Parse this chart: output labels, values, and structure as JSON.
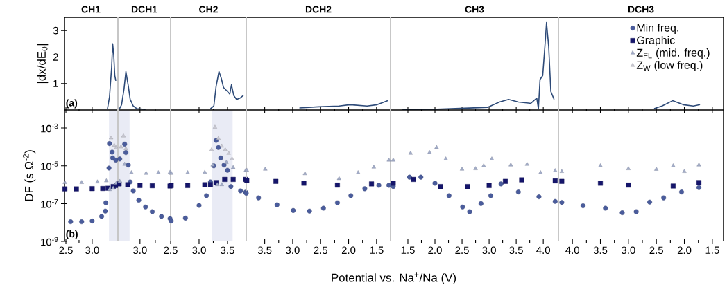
{
  "chart_data": [
    {
      "type": "line",
      "title": "CH1",
      "ylabel": "|dx/dE$_{0}$|",
      "annotations": [
        "(a)"
      ],
      "xlim": [
        2.46,
        3.49
      ],
      "xticks": [
        2.5,
        3
      ],
      "ylim": [
        0,
        3.5
      ],
      "yticks": [
        1,
        2,
        3
      ],
      "tick_labels": "y",
      "series": [
        {
          "color": "#2d4a78",
          "x": [
            3.29,
            3.33,
            3.37,
            3.39,
            3.41,
            3.43,
            3.45
          ],
          "values": [
            0.03,
            0.5,
            1.6,
            2.5,
            2.1,
            1.3,
            1.1
          ]
        }
      ]
    },
    {
      "type": "line",
      "title": "DCH1",
      "xlim": [
        3.36,
        2.5
      ],
      "xticks": [
        3,
        2.5
      ],
      "ylim": [
        0,
        3.5
      ],
      "tick_labels": false,
      "series": [
        {
          "color": "#2d4a78",
          "x": [
            3.34,
            3.3,
            3.26,
            3.23,
            3.19,
            3.16,
            3.11,
            3.05,
            2.91
          ],
          "values": [
            0.02,
            0.2,
            0.8,
            1.45,
            0.9,
            0.4,
            0.15,
            0.05,
            0.02
          ]
        }
      ]
    },
    {
      "type": "line",
      "title": "CH2",
      "xlim": [
        2.5,
        3.83
      ],
      "xticks": [
        3,
        3.5
      ],
      "ylim": [
        0,
        3.5
      ],
      "tick_labels": false,
      "series": [
        {
          "color": "#2d4a78",
          "x": [
            3.2,
            3.26,
            3.3,
            3.35,
            3.39,
            3.43,
            3.5,
            3.54,
            3.57,
            3.61,
            3.66,
            3.72,
            3.78
          ],
          "values": [
            0.05,
            0.15,
            0.9,
            1.45,
            1.2,
            0.85,
            0.7,
            0.6,
            0.95,
            0.55,
            0.4,
            0.45,
            0.55
          ]
        }
      ]
    },
    {
      "type": "line",
      "title": "DCH2",
      "xlim": [
        3.83,
        1.25
      ],
      "xticks": [
        3.5,
        3,
        2.5,
        2,
        1.5
      ],
      "ylim": [
        0,
        3.5
      ],
      "tick_labels": false,
      "series": [
        {
          "color": "#2d4a78",
          "x": [
            2.88,
            2.54,
            2.17,
            1.98,
            1.67,
            1.49,
            1.39,
            1.3
          ],
          "values": [
            0.08,
            0.12,
            0.15,
            0.2,
            0.15,
            0.2,
            0.28,
            0.35
          ]
        }
      ]
    },
    {
      "type": "line",
      "title": "CH3",
      "xlim": [
        1.18,
        4.28
      ],
      "xticks": [
        1.5,
        2,
        2.5,
        3,
        3.5,
        4
      ],
      "ylim": [
        0,
        3.5
      ],
      "tick_labels": false,
      "series": [
        {
          "color": "#2d4a78",
          "x": [
            1.4,
            2.04,
            2.97,
            3.19,
            3.36,
            3.54,
            3.77,
            3.88,
            3.91,
            3.94,
            3.99,
            4.03,
            4.06,
            4.1,
            4.14,
            4.2
          ],
          "values": [
            0.02,
            0.03,
            0.1,
            0.3,
            0.4,
            0.3,
            0.25,
            0.45,
            0.05,
            1.15,
            1.3,
            2.4,
            3.3,
            2.4,
            0.7,
            0.4
          ]
        }
      ]
    },
    {
      "type": "line",
      "title": "DCH3",
      "xlim": [
        4.25,
        1.3
      ],
      "xticks": [
        4,
        3.5,
        3,
        2.5,
        2,
        1.5
      ],
      "ylim": [
        0,
        3.5
      ],
      "tick_labels": false,
      "series": [
        {
          "color": "#2d4a78",
          "x": [
            2.54,
            2.4,
            2.21,
            2.02,
            1.84,
            1.72
          ],
          "values": [
            0.05,
            0.15,
            0.35,
            0.2,
            0.15,
            0.2
          ]
        }
      ]
    },
    {
      "type": "scatter",
      "log": "y",
      "ylabel": "DF (s Ω$^{-2}$)",
      "annotations": [
        "(b)"
      ],
      "xlim": [
        2.46,
        3.49
      ],
      "xticks": [
        2.5,
        {
          "value": 3,
          "label": "3.0"
        }
      ],
      "ylim": [
        1e-09,
        0.009
      ],
      "yticks": [
        {
          "value": 1e-09,
          "label": "10$^{-9}$"
        },
        {
          "value": 1e-07,
          "label": "10$^{-7}$"
        },
        {
          "value": 1e-05,
          "label": "10$^{-5}$"
        },
        {
          "value": 0.001,
          "label": "10$^{-3}$"
        }
      ],
      "bands": [
        {
          "axis": "x",
          "from": 3.32,
          "to": 3.49,
          "color": "#e9ebf5"
        }
      ],
      "series": [
        {
          "color": "#4a5c9c",
          "marker": "circle",
          "x": [
            2.59,
            2.8,
            3.0,
            3.18,
            3.25,
            3.26,
            3.32,
            3.33,
            3.38,
            3.39,
            3.45
          ],
          "values": [
            1.1e-08,
            1.1e-08,
            1.2e-08,
            2.1e-08,
            4e-08,
            1.1e-07,
            7.6e-06,
            0.00015,
            5.3e-05,
            2.6e-05,
            2e-05
          ]
        },
        {
          "color": "#15156b",
          "marker": "square",
          "x": [
            2.48,
            2.7,
            3.0,
            3.2,
            3.3,
            3.4,
            3.47
          ],
          "values": [
            6e-07,
            6e-07,
            6.2e-07,
            6.3e-07,
            6.5e-07,
            8e-07,
            9e-07
          ]
        },
        {
          "color": "#a3adc9",
          "marker": "triangle",
          "x": [
            2.48,
            2.8,
            3.1,
            3.27,
            3.33,
            3.4,
            3.46
          ],
          "values": [
            1.3e-06,
            1.3e-06,
            1.4e-06,
            1.6e-06,
            5.5e-07,
            6.5e-07,
            1.2e-06
          ]
        },
        {
          "color": "#c9c9d3",
          "marker": "triangle",
          "x": [
            3.36,
            3.42,
            3.46
          ],
          "values": [
            0.0003,
            0.00012,
            9e-05
          ]
        }
      ]
    },
    {
      "type": "scatter",
      "log": "y",
      "xlim": [
        3.36,
        2.5
      ],
      "xticks": [
        {
          "value": 3,
          "label": "3.0"
        },
        2.5
      ],
      "ylim": [
        1e-09,
        0.009
      ],
      "tick_labels": "x",
      "bands": [
        {
          "axis": "x",
          "from": 3.36,
          "to": 3.17,
          "color": "#e9ebf5"
        }
      ],
      "series": [
        {
          "color": "#4a5c9c",
          "marker": "circle",
          "x": [
            3.33,
            3.25,
            3.23,
            3.19,
            3.16,
            3.11,
            3.02,
            2.91,
            2.8,
            2.65,
            2.51
          ],
          "values": [
            2.3e-05,
            0.00014,
            5e-05,
            1.1e-05,
            1.4e-06,
            4.7e-07,
            1.5e-07,
            6.6e-08,
            3.7e-08,
            2.1e-08,
            1.6e-08
          ]
        },
        {
          "color": "#15156b",
          "marker": "square",
          "x": [
            3.34,
            3.2,
            3.0,
            2.8,
            2.51
          ],
          "values": [
            1.1e-06,
            1e-06,
            9e-07,
            8.8e-07,
            8.5e-07
          ]
        },
        {
          "color": "#a3adc9",
          "marker": "triangle",
          "x": [
            3.33,
            3.25,
            3.14,
            2.9,
            2.7,
            2.51
          ],
          "values": [
            1.5e-06,
            1.2e-05,
            4.3e-06,
            4e-06,
            4.3e-06,
            4.5e-06
          ]
        },
        {
          "color": "#c9c9d3",
          "marker": "triangle",
          "x": [
            3.31,
            3.27,
            3.23
          ],
          "values": [
            0.0001,
            0.00038,
            8e-05
          ]
        }
      ]
    },
    {
      "type": "scatter",
      "log": "y",
      "xlim": [
        2.5,
        3.83
      ],
      "xticks": [
        {
          "value": 3,
          "label": "3.0"
        },
        3.5
      ],
      "ylim": [
        1e-09,
        0.009
      ],
      "tick_labels": "x",
      "legend": "top right",
      "bands": [
        {
          "axis": "x",
          "from": 3.23,
          "to": 3.59,
          "color": "#e9ebf5"
        }
      ],
      "series": [
        {
          "name": "Min freq.",
          "color": "#4a5c9c",
          "marker": "circle",
          "x": [
            2.51,
            2.76,
            3.0,
            3.13,
            3.2,
            3.26,
            3.3,
            3.34,
            3.38,
            3.44,
            3.5,
            3.56,
            3.73,
            3.82
          ],
          "values": [
            1.2e-08,
            1.7e-08,
            8e-08,
            2.6e-07,
            1.4e-06,
            1e-05,
            0.00022,
            9.3e-05,
            2.6e-05,
            1.1e-05,
            5.8e-06,
            8e-07,
            4.7e-07,
            4e-07
          ]
        },
        {
          "name": "Graphic",
          "color": "#15156b",
          "marker": "square",
          "x": [
            2.51,
            2.8,
            3.1,
            3.2,
            3.3,
            3.45,
            3.6,
            3.82
          ],
          "values": [
            9e-07,
            9e-07,
            1e-06,
            1e-06,
            1.3e-06,
            1.9e-06,
            1.9e-06,
            1.9e-06
          ]
        },
        {
          "name": "Z$_{FL}$ (mid. freq.)",
          "color": "#a3adc9",
          "marker": "triangle",
          "x": [
            2.51,
            2.8,
            3.1,
            3.24,
            3.32,
            3.4,
            3.48,
            3.6,
            3.82
          ],
          "values": [
            4e-06,
            4.3e-06,
            4.5e-06,
            1.1e-05,
            1e-06,
            1e-06,
            1.5e-05,
            8e-06,
            5.5e-06
          ]
        },
        {
          "name": "Z$_{W}$ (low freq.)",
          "color": "#c9c9d3",
          "marker": "triangle",
          "x": [
            3.22,
            3.28,
            3.34,
            3.4,
            3.46,
            3.52,
            3.58
          ],
          "values": [
            7e-05,
            0.0011,
            0.00028,
            0.00011,
            7e-05,
            4.6e-05,
            2.3e-05
          ]
        }
      ]
    },
    {
      "type": "scatter",
      "log": "y",
      "xlabel": "Potential vs. Na$^{+}$/Na (V)",
      "xlim": [
        3.83,
        1.25
      ],
      "xticks": [
        3.5,
        {
          "value": 3,
          "label": "3.0"
        },
        2.5,
        {
          "value": 2,
          "label": "2.0"
        },
        1.5
      ],
      "ylim": [
        1e-09,
        0.009
      ],
      "tick_labels": "x",
      "series": [
        {
          "color": "#4a5c9c",
          "marker": "circle",
          "x": [
            3.83,
            3.61,
            3.28,
            2.99,
            2.7,
            2.45,
            2.2,
            1.96,
            1.71,
            1.46,
            1.28
          ],
          "values": [
            3.5e-07,
            2e-07,
            8.6e-08,
            4.3e-08,
            4e-08,
            5.7e-08,
            1.1e-07,
            2.6e-07,
            6.1e-07,
            9.3e-07,
            9.3e-07
          ]
        },
        {
          "color": "#15156b",
          "marker": "square",
          "x": [
            3.82,
            3.3,
            2.8,
            2.2,
            1.59
          ],
          "values": [
            1.7e-06,
            1.5e-06,
            1.2e-06,
            9.5e-07,
            1.1e-06
          ]
        },
        {
          "color": "#a3adc9",
          "marker": "triangle",
          "x": [
            3.82,
            3.49,
            2.78,
            2.17,
            1.83,
            1.55,
            1.28
          ],
          "values": [
            5.8e-06,
            6.6e-06,
            3.8e-06,
            2.1e-06,
            4.3e-06,
            8.5e-06,
            2e-05
          ]
        }
      ]
    },
    {
      "type": "scatter",
      "log": "y",
      "xlim": [
        1.18,
        4.28
      ],
      "xticks": [
        1.5,
        {
          "value": 2,
          "label": "2.0"
        },
        2.5,
        {
          "value": 3,
          "label": "3.0"
        },
        3.5,
        {
          "value": 4,
          "label": "4.0"
        }
      ],
      "ylim": [
        1e-09,
        0.009
      ],
      "tick_labels": "x",
      "series": [
        {
          "color": "#4a5c9c",
          "marker": "circle",
          "x": [
            1.23,
            1.53,
            1.74,
            2.0,
            2.26,
            2.51,
            2.64,
            2.85,
            3.03,
            3.22,
            3.54,
            3.92,
            4.22
          ],
          "values": [
            8e-07,
            2.5e-06,
            2.5e-06,
            1.2e-06,
            2.6e-07,
            6.6e-08,
            3.7e-08,
            1e-07,
            2.6e-07,
            1.1e-06,
            4.1e-07,
            2.3e-07,
            1.3e-07
          ]
        },
        {
          "color": "#15156b",
          "marker": "square",
          "x": [
            1.23,
            1.6,
            2.1,
            2.6,
            3.0,
            3.3,
            3.6,
            4.22
          ],
          "values": [
            1.2e-06,
            1.9e-06,
            8e-07,
            8e-07,
            9e-07,
            1.5e-06,
            1.8e-06,
            1.6e-06
          ]
        },
        {
          "color": "#a3adc9",
          "marker": "triangle",
          "x": [
            1.23,
            1.55,
            1.9,
            2.03,
            2.2,
            2.5,
            2.75,
            2.9,
            3.05,
            3.4,
            3.7,
            3.95,
            4.22
          ],
          "values": [
            2e-05,
            4.6e-05,
            5e-05,
            9.3e-05,
            2.3e-05,
            6.6e-06,
            7e-06,
            1e-05,
            2.3e-05,
            1.1e-05,
            1.2e-05,
            4.3e-06,
            5.5e-06
          ]
        }
      ]
    },
    {
      "type": "scatter",
      "log": "y",
      "xlim": [
        4.25,
        1.3
      ],
      "xticks": [
        {
          "value": 4,
          "label": "4.0"
        },
        3.5,
        {
          "value": 3,
          "label": "3.0"
        },
        2.5,
        {
          "value": 2,
          "label": "2.0"
        },
        1.5
      ],
      "ylim": [
        1e-09,
        0.009
      ],
      "tick_labels": "x",
      "series": [
        {
          "color": "#4a5c9c",
          "marker": "circle",
          "x": [
            4.19,
            3.81,
            3.41,
            3.11,
            2.86,
            2.62,
            2.37,
            2.05,
            1.74
          ],
          "values": [
            1.15e-07,
            7.7e-08,
            5.7e-08,
            3.3e-08,
            3.7e-08,
            1.2e-07,
            2e-07,
            4.1e-07,
            7e-07
          ]
        },
        {
          "color": "#15156b",
          "marker": "square",
          "x": [
            4.19,
            3.5,
            3.0,
            2.2,
            1.74
          ],
          "values": [
            1.5e-06,
            1.2e-06,
            9.5e-07,
            8.5e-07,
            1.3e-06
          ]
        },
        {
          "color": "#a3adc9",
          "marker": "triangle",
          "x": [
            4.19,
            3.5,
            3.0,
            2.5,
            2.2,
            2.0,
            1.74
          ],
          "values": [
            5e-06,
            1e-05,
            7e-06,
            6.5e-06,
            1e-05,
            5e-06,
            1.1e-05
          ]
        }
      ]
    }
  ]
}
